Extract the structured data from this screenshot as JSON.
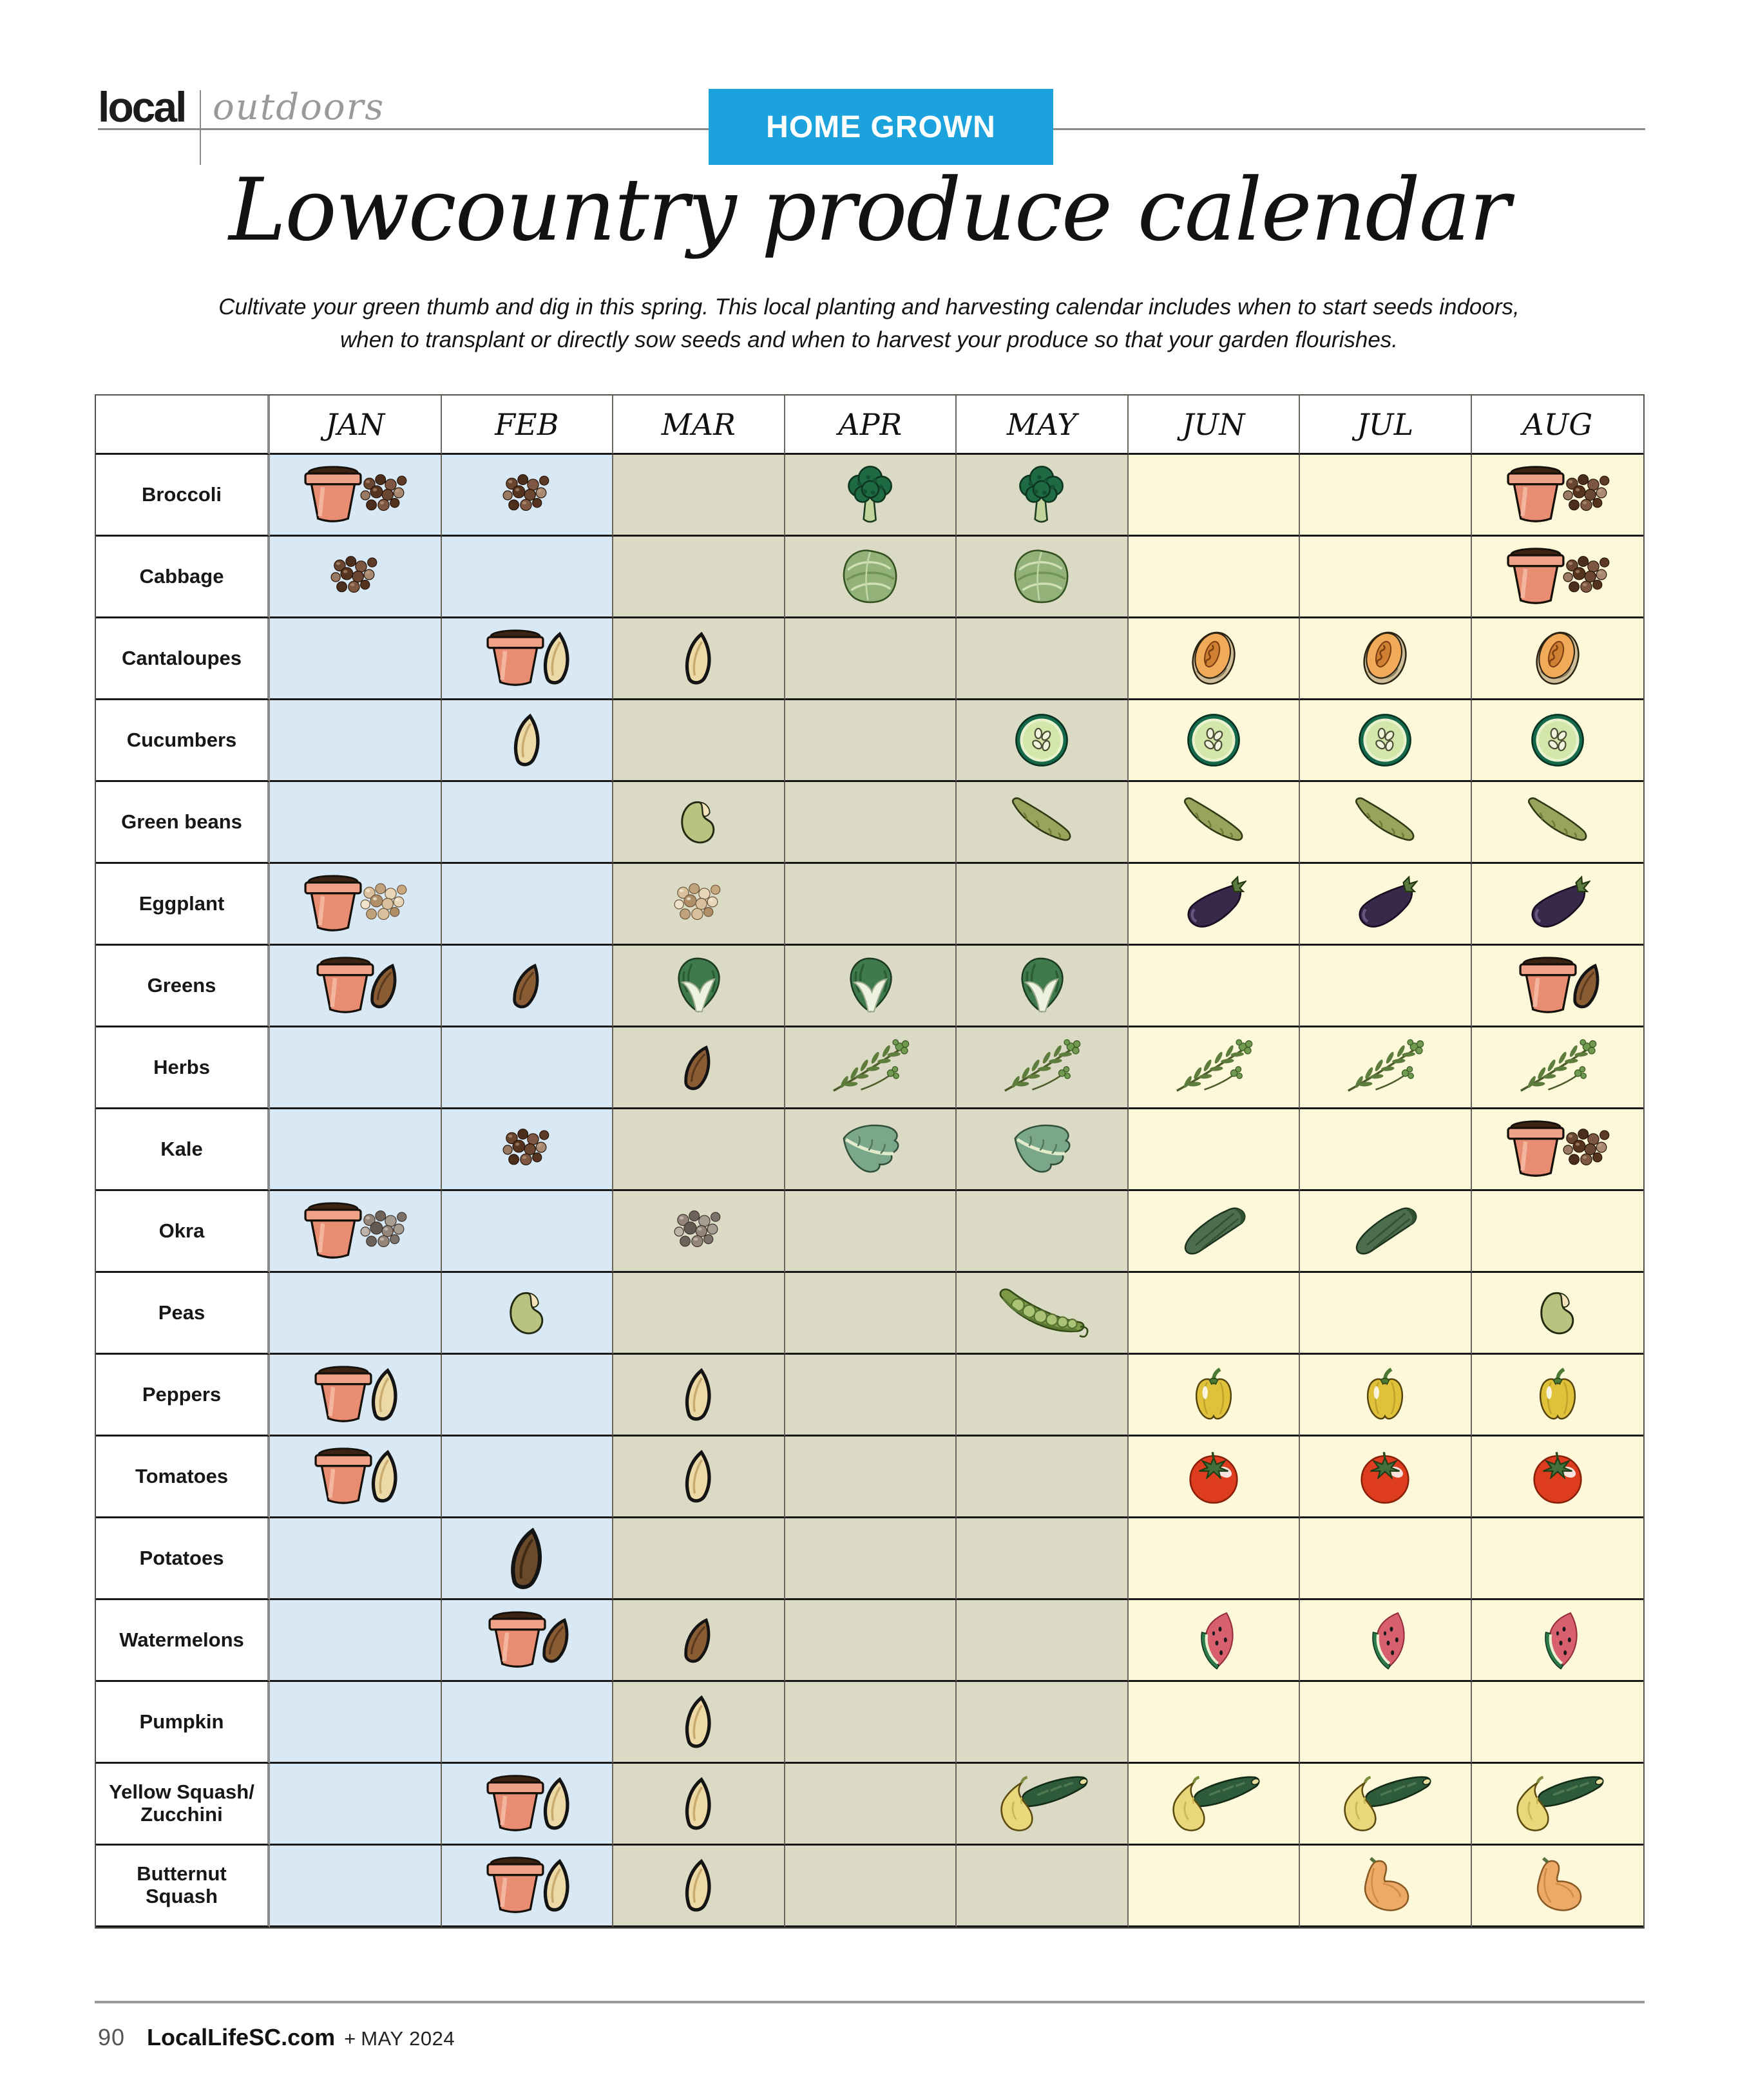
{
  "masthead": {
    "brand": "local",
    "section": "outdoors",
    "banner": "HOME GROWN"
  },
  "title": "Lowcountry produce calendar",
  "subtitle": "Cultivate your green thumb and dig in this spring. This local planting and harvesting calendar includes when to start seeds indoors,\nwhen to transplant or directly sow seeds and when to harvest your produce so that your garden flourishes.",
  "colors": {
    "banner_blue": "#1ca3dd",
    "winter_bg": "#d8e8f4",
    "spring_bg": "#dbdac5",
    "summer_bg": "#fcf8d9"
  },
  "calendar": {
    "months": [
      {
        "label": "JAN",
        "season": "winter"
      },
      {
        "label": "FEB",
        "season": "winter"
      },
      {
        "label": "MAR",
        "season": "spring"
      },
      {
        "label": "APR",
        "season": "spring"
      },
      {
        "label": "MAY",
        "season": "spring"
      },
      {
        "label": "JUN",
        "season": "summer"
      },
      {
        "label": "JUL",
        "season": "summer"
      },
      {
        "label": "AUG",
        "season": "summer"
      }
    ],
    "rows": [
      {
        "label": [
          "Broccoli"
        ],
        "cells": [
          [
            "pot",
            "seeds-brown"
          ],
          [
            "seeds-brown"
          ],
          [],
          [
            "broccoli"
          ],
          [
            "broccoli"
          ],
          [],
          [],
          [
            "pot",
            "seeds-brown"
          ]
        ]
      },
      {
        "label": [
          "Cabbage"
        ],
        "cells": [
          [
            "seeds-brown"
          ],
          [],
          [],
          [
            "cabbage"
          ],
          [
            "cabbage"
          ],
          [],
          [],
          [
            "pot",
            "seeds-brown"
          ]
        ]
      },
      {
        "label": [
          "Cantaloupes"
        ],
        "cells": [
          [],
          [
            "pot",
            "seed-tan"
          ],
          [
            "seed-tan"
          ],
          [],
          [],
          [
            "cantaloupe"
          ],
          [
            "cantaloupe"
          ],
          [
            "cantaloupe"
          ]
        ]
      },
      {
        "label": [
          "Cucumbers"
        ],
        "cells": [
          [],
          [
            "seed-tan"
          ],
          [],
          [],
          [
            "cucumber"
          ],
          [
            "cucumber"
          ],
          [
            "cucumber"
          ],
          [
            "cucumber"
          ]
        ]
      },
      {
        "label": [
          "Green beans"
        ],
        "cells": [
          [],
          [],
          [
            "seed-green"
          ],
          [],
          [
            "green-bean"
          ],
          [
            "green-bean"
          ],
          [
            "green-bean"
          ],
          [
            "green-bean"
          ]
        ]
      },
      {
        "label": [
          "Eggplant"
        ],
        "cells": [
          [
            "pot",
            "seeds-tan"
          ],
          [],
          [
            "seeds-tan"
          ],
          [],
          [],
          [
            "eggplant"
          ],
          [
            "eggplant"
          ],
          [
            "eggplant"
          ]
        ]
      },
      {
        "label": [
          "Greens"
        ],
        "cells": [
          [
            "pot",
            "seed-brown"
          ],
          [
            "seed-brown"
          ],
          [
            "greens"
          ],
          [
            "greens"
          ],
          [
            "greens"
          ],
          [],
          [],
          [
            "pot",
            "seed-brown"
          ]
        ]
      },
      {
        "label": [
          "Herbs"
        ],
        "cells": [
          [],
          [],
          [
            "seed-brown"
          ],
          [
            "herbs"
          ],
          [
            "herbs"
          ],
          [
            "herbs"
          ],
          [
            "herbs"
          ],
          [
            "herbs"
          ]
        ]
      },
      {
        "label": [
          "Kale"
        ],
        "cells": [
          [],
          [
            "seeds-brown"
          ],
          [],
          [
            "kale"
          ],
          [
            "kale"
          ],
          [],
          [],
          [
            "pot",
            "seeds-brown"
          ]
        ]
      },
      {
        "label": [
          "Okra"
        ],
        "cells": [
          [
            "pot",
            "seeds-gray"
          ],
          [],
          [
            "seeds-gray"
          ],
          [],
          [],
          [
            "okra"
          ],
          [
            "okra"
          ],
          []
        ]
      },
      {
        "label": [
          "Peas"
        ],
        "cells": [
          [],
          [
            "seed-green"
          ],
          [],
          [],
          [
            "pea-pod"
          ],
          [],
          [],
          [
            "seed-green"
          ]
        ]
      },
      {
        "label": [
          "Peppers"
        ],
        "cells": [
          [
            "pot",
            "seed-tan"
          ],
          [],
          [
            "seed-tan"
          ],
          [],
          [],
          [
            "pepper"
          ],
          [
            "pepper"
          ],
          [
            "pepper"
          ]
        ]
      },
      {
        "label": [
          "Tomatoes"
        ],
        "cells": [
          [
            "pot",
            "seed-tan"
          ],
          [],
          [
            "seed-tan"
          ],
          [],
          [],
          [
            "tomato"
          ],
          [
            "tomato"
          ],
          [
            "tomato"
          ]
        ]
      },
      {
        "label": [
          "Potatoes"
        ],
        "cells": [
          [],
          [
            "seed-dark"
          ],
          [],
          [],
          [],
          [],
          [],
          []
        ]
      },
      {
        "label": [
          "Watermelons"
        ],
        "cells": [
          [],
          [
            "pot",
            "seed-brown"
          ],
          [
            "seed-brown"
          ],
          [],
          [],
          [
            "watermelon"
          ],
          [
            "watermelon"
          ],
          [
            "watermelon"
          ]
        ]
      },
      {
        "label": [
          "Pumpkin"
        ],
        "cells": [
          [],
          [],
          [
            "seed-tan"
          ],
          [],
          [],
          [],
          [],
          []
        ]
      },
      {
        "label": [
          "Yellow Squash/",
          "Zucchini"
        ],
        "cells": [
          [],
          [
            "pot",
            "seed-tan"
          ],
          [
            "seed-tan"
          ],
          [],
          [
            "squash-zucchini"
          ],
          [
            "squash-zucchini"
          ],
          [
            "squash-zucchini"
          ],
          [
            "squash-zucchini"
          ]
        ]
      },
      {
        "label": [
          "Butternut",
          "Squash"
        ],
        "cells": [
          [],
          [
            "pot",
            "seed-tan"
          ],
          [
            "seed-tan"
          ],
          [],
          [],
          [],
          [
            "butternut-squash"
          ],
          [
            "butternut-squash"
          ]
        ]
      }
    ]
  },
  "footer": {
    "page_number": "90",
    "site": "LocalLifeSC.com",
    "separator": "+",
    "issue": "MAY 2024"
  }
}
